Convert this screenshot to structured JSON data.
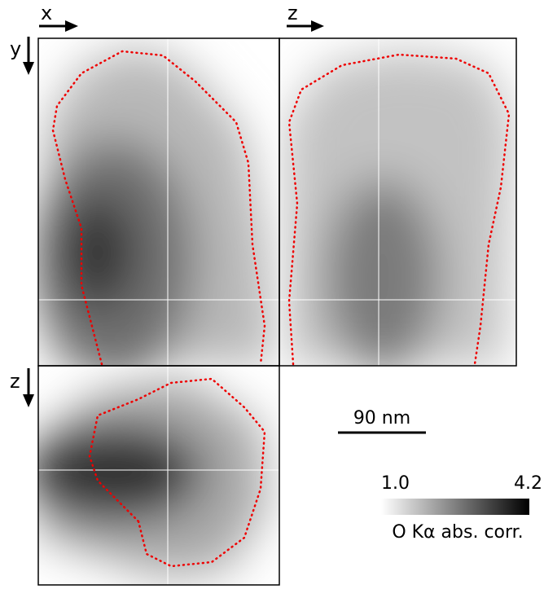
{
  "axes": {
    "top_left_horizontal": "x",
    "top_left_vertical": "y",
    "top_right_horizontal": "z",
    "bottom_left_vertical": "z"
  },
  "scale_bar": {
    "label": "90 nm"
  },
  "colorbar": {
    "min_label": "1.0",
    "max_label": "4.2",
    "title": "O Kα abs. corr."
  }
}
